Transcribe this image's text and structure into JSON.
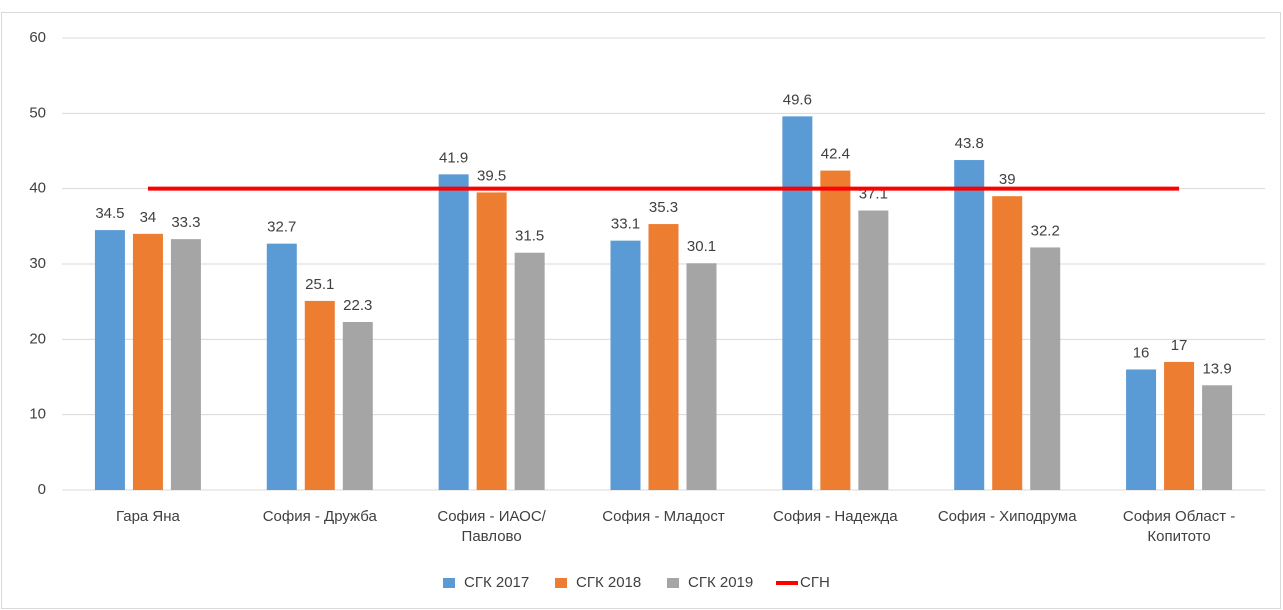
{
  "chart_data": {
    "type": "bar",
    "categories": [
      "Гара Яна",
      "София - Дружба",
      "София - ИАОС/Павлово",
      "София - Младост",
      "София - Надежда",
      "София - Хиподрума",
      "София Област - Копитото"
    ],
    "series": [
      {
        "name": "СГК 2017",
        "color": "#5b9bd5",
        "type": "bar",
        "values": [
          34.5,
          32.7,
          41.9,
          33.1,
          49.6,
          43.8,
          16
        ]
      },
      {
        "name": "СГК 2018",
        "color": "#ed7d31",
        "type": "bar",
        "values": [
          34,
          25.1,
          39.5,
          35.3,
          42.4,
          39,
          17
        ]
      },
      {
        "name": "СГК 2019",
        "color": "#a5a5a5",
        "type": "bar",
        "values": [
          33.3,
          22.3,
          31.5,
          30.1,
          37.1,
          32.2,
          13.9
        ]
      },
      {
        "name": "СГН",
        "color": "#ff0000",
        "type": "line",
        "values": [
          40,
          40,
          40,
          40,
          40,
          40,
          40
        ]
      }
    ],
    "ylim": [
      0,
      60
    ],
    "yticks": [
      0,
      10,
      20,
      30,
      40,
      50,
      60
    ],
    "grid": true,
    "legend": "bottom"
  }
}
